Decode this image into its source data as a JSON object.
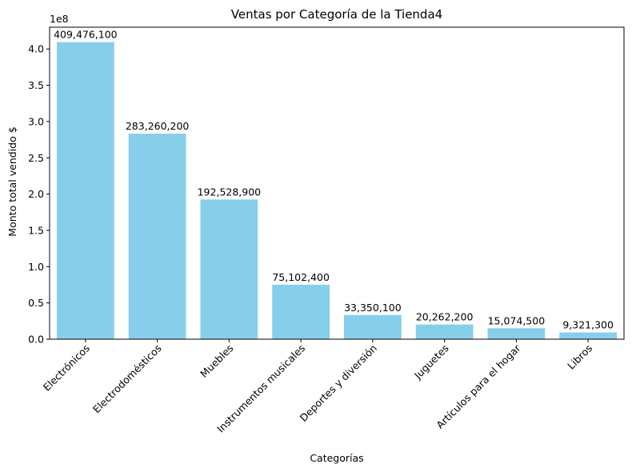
{
  "chart_data": {
    "type": "bar",
    "title": "Ventas por Categoría de la Tienda4",
    "xlabel": "Categorías",
    "ylabel": "Monto total vendido $",
    "y_offset_label": "1e8",
    "y_scale": 100000000,
    "ylim": [
      0,
      430000000
    ],
    "y_ticks": [
      0,
      50000000,
      100000000,
      150000000,
      200000000,
      250000000,
      300000000,
      350000000,
      400000000
    ],
    "y_tick_labels": [
      "0.0",
      "0.5",
      "1.0",
      "1.5",
      "2.0",
      "2.5",
      "3.0",
      "3.5",
      "4.0"
    ],
    "categories": [
      "Electrónicos",
      "Electrodomésticos",
      "Muebles",
      "Instrumentos musicales",
      "Deportes y diversión",
      "Juguetes",
      "Artículos para el hogar",
      "Libros"
    ],
    "values": [
      409476100,
      283260200,
      192528900,
      75102400,
      33350100,
      20262200,
      15074500,
      9321300
    ],
    "value_labels": [
      "409,476,100",
      "283,260,200",
      "192,528,900",
      "75,102,400",
      "33,350,100",
      "20,262,200",
      "15,074,500",
      "9,321,300"
    ],
    "bar_color": "#87ceeb",
    "grid": false,
    "legend": "none"
  }
}
